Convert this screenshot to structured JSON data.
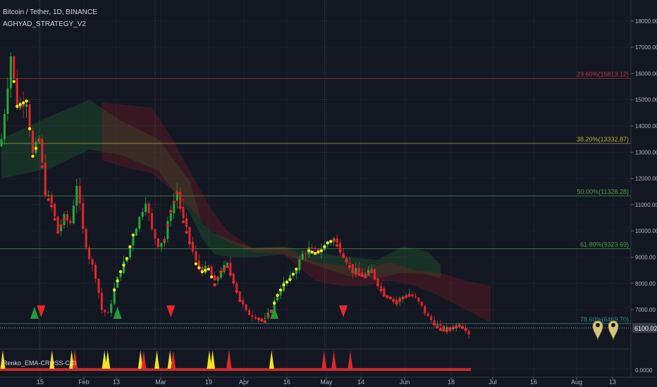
{
  "header": {
    "symbol": "Bitcoin / Tether, 1D, BINANCE",
    "study": "AGHYAD_STRATEGY_V2"
  },
  "indicator_label": "Renko_EMA-CROSS-CCI",
  "colors": {
    "background": "#131722",
    "up_candle": "#22ab3a",
    "down_candle": "#e0262a",
    "signal_yellow": "#f5e41c",
    "fib_red": "#b9333a",
    "fib_yellow": "#b6b43a",
    "fib_green": "#49a545",
    "fib_teal": "#2f8a86"
  },
  "chart_data": [
    {
      "type": "candlestick",
      "y_axis_side": "right",
      "ylim": [
        5500,
        18800
      ],
      "y_ticks": [
        "18000.00",
        "17000.00",
        "16000.00",
        "15000.00",
        "14000.00",
        "13000.00",
        "12000.00",
        "11000.00",
        "10000.00",
        "9000.00",
        "8000.00",
        "7000.00"
      ],
      "x_ticks": [
        "15",
        "Feb",
        "13",
        "Mar",
        "19",
        "Apr",
        "16",
        "May",
        "14",
        "Jun",
        "18",
        "Jul",
        "16",
        "Aug",
        "13"
      ],
      "last_price": 6100,
      "last_price_label": "6100.02",
      "fib_levels": [
        {
          "label": "23.60%(15813.12)",
          "value": 15813.12,
          "color": "fib_red"
        },
        {
          "label": "38.20%(13332.87)",
          "value": 13332.87,
          "color": "fib_yellow"
        },
        {
          "label": "50.00%(11328.28)",
          "value": 11328.28,
          "color": "fib_green"
        },
        {
          "label": "61.80%(9323.69)",
          "value": 9323.69,
          "color": "fib_green"
        },
        {
          "label": "78.60%(6469.70)",
          "value": 6469.7,
          "color": "fib_teal"
        }
      ],
      "price_anchors": [
        [
          0,
          13500
        ],
        [
          3,
          16700
        ],
        [
          5,
          14800
        ],
        [
          8,
          15000
        ],
        [
          10,
          12900
        ],
        [
          12,
          13500
        ],
        [
          14,
          11500
        ],
        [
          16,
          11000
        ],
        [
          18,
          10000
        ],
        [
          20,
          10500
        ],
        [
          22,
          10300
        ],
        [
          24,
          11800
        ],
        [
          26,
          10000
        ],
        [
          28,
          9000
        ],
        [
          30,
          8300
        ],
        [
          32,
          7000
        ],
        [
          34,
          6800
        ],
        [
          36,
          7800
        ],
        [
          38,
          8500
        ],
        [
          40,
          9000
        ],
        [
          42,
          9900
        ],
        [
          44,
          10500
        ],
        [
          46,
          11200
        ],
        [
          48,
          10000
        ],
        [
          50,
          9500
        ],
        [
          52,
          9700
        ],
        [
          54,
          10800
        ],
        [
          56,
          11500
        ],
        [
          58,
          10400
        ],
        [
          60,
          9600
        ],
        [
          62,
          8800
        ],
        [
          64,
          8500
        ],
        [
          66,
          8600
        ],
        [
          68,
          8000
        ],
        [
          70,
          8500
        ],
        [
          72,
          8700
        ],
        [
          74,
          8100
        ],
        [
          76,
          7400
        ],
        [
          78,
          6900
        ],
        [
          80,
          6800
        ],
        [
          82,
          6700
        ],
        [
          84,
          6600
        ],
        [
          86,
          7000
        ],
        [
          88,
          7600
        ],
        [
          90,
          8000
        ],
        [
          92,
          8200
        ],
        [
          94,
          8600
        ],
        [
          96,
          9100
        ],
        [
          98,
          9300
        ],
        [
          100,
          9200
        ],
        [
          102,
          9300
        ],
        [
          104,
          9600
        ],
        [
          106,
          9700
        ],
        [
          108,
          9300
        ],
        [
          110,
          8900
        ],
        [
          112,
          8500
        ],
        [
          114,
          8400
        ],
        [
          116,
          8300
        ],
        [
          118,
          8500
        ],
        [
          120,
          8000
        ],
        [
          122,
          7600
        ],
        [
          124,
          7500
        ],
        [
          126,
          7300
        ],
        [
          128,
          7500
        ],
        [
          130,
          7600
        ],
        [
          132,
          7400
        ],
        [
          134,
          7100
        ],
        [
          136,
          6700
        ],
        [
          138,
          6500
        ],
        [
          140,
          6300
        ],
        [
          142,
          6250
        ],
        [
          144,
          6350
        ],
        [
          146,
          6450
        ],
        [
          148,
          6300
        ],
        [
          149,
          6100
        ]
      ],
      "ichimoku_cloud": {
        "green_band": [
          [
            0,
            12000,
            13500
          ],
          [
            16,
            12400,
            14400
          ],
          [
            28,
            13100,
            15000
          ],
          [
            38,
            12900,
            14200
          ],
          [
            50,
            12300,
            13500
          ],
          [
            60,
            10700,
            11900
          ],
          [
            64,
            9700,
            10300
          ],
          [
            68,
            9100,
            9900
          ],
          [
            74,
            9000,
            9600
          ],
          [
            80,
            9000,
            9350
          ],
          [
            90,
            9100,
            9400
          ],
          [
            100,
            8700,
            9200
          ],
          [
            110,
            8300,
            9000
          ],
          [
            120,
            8200,
            8900
          ],
          [
            128,
            8400,
            9400
          ],
          [
            136,
            8350,
            9200
          ],
          [
            140,
            8200,
            8700
          ]
        ],
        "red_band": [
          [
            32,
            12700,
            14900
          ],
          [
            40,
            12400,
            14800
          ],
          [
            48,
            12200,
            14700
          ],
          [
            54,
            11600,
            13600
          ],
          [
            60,
            10900,
            12300
          ],
          [
            66,
            10100,
            11000
          ],
          [
            72,
            9600,
            10000
          ],
          [
            80,
            9200,
            9350
          ],
          [
            90,
            9100,
            9400
          ],
          [
            100,
            8100,
            8800
          ],
          [
            108,
            7900,
            8700
          ],
          [
            116,
            7900,
            8600
          ],
          [
            124,
            8100,
            8800
          ],
          [
            132,
            7900,
            8500
          ],
          [
            140,
            7500,
            8400
          ],
          [
            148,
            7000,
            8100
          ],
          [
            156,
            6500,
            7900
          ]
        ]
      },
      "signal_markers": [
        {
          "x": 11,
          "kind": "buy"
        },
        {
          "x": 12,
          "kind": "sell"
        },
        {
          "x": 37,
          "kind": "buy"
        },
        {
          "x": 54,
          "kind": "sell"
        },
        {
          "x": 87,
          "kind": "buy"
        },
        {
          "x": 109,
          "kind": "sell"
        }
      ],
      "vertical_event_lines": [
        12,
        49,
        103
      ],
      "yellow_dot_ranges": [
        [
          4,
          12
        ],
        [
          36,
          42
        ],
        [
          62,
          72
        ],
        [
          86,
          94
        ],
        [
          98,
          106
        ]
      ],
      "red_dot_ranges": [
        [
          12,
          20
        ],
        [
          52,
          60
        ],
        [
          68,
          76
        ],
        [
          82,
          86
        ],
        [
          106,
          116
        ],
        [
          116,
          130
        ],
        [
          138,
          148
        ]
      ]
    },
    {
      "type": "indicator",
      "label": "Renko_EMA-CROSS-CCI",
      "y_ticks": [
        "0.0000"
      ],
      "yellow_spikes": [
        0,
        15,
        21,
        22,
        31,
        32,
        42,
        47,
        51,
        63,
        64,
        69,
        82
      ],
      "red_spikes": [
        22,
        43,
        52,
        69,
        98,
        101,
        106
      ]
    }
  ],
  "icons": [
    "pin-icon",
    "pin-icon"
  ]
}
